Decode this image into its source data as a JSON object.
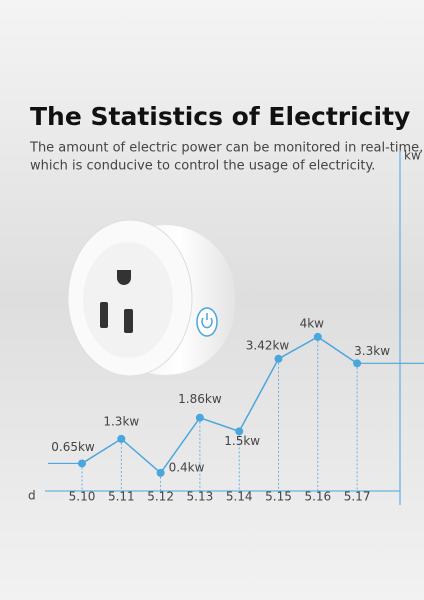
{
  "chart_data": {
    "type": "line",
    "title": "The Statistics of Electricity",
    "subtitle": [
      "The amount of electric power can be monitored in real-time,",
      "which is conducive to control the usage of electricity."
    ],
    "y_label": "kw",
    "x_label": "d",
    "categories": [
      "5.10",
      "5.11",
      "5.12",
      "5.13",
      "5.14",
      "5.15",
      "5.16",
      "5.17"
    ],
    "values": [
      0.65,
      1.3,
      0.4,
      1.86,
      1.5,
      3.42,
      4,
      3.3
    ],
    "value_labels": [
      "0.65kw",
      "1.3kw",
      "0.4kw",
      "1.86kw",
      "1.5kw",
      "3.42kw",
      "4kw",
      "3.3kw"
    ],
    "ylim": [
      0,
      9
    ],
    "color": "#4aa6de"
  }
}
